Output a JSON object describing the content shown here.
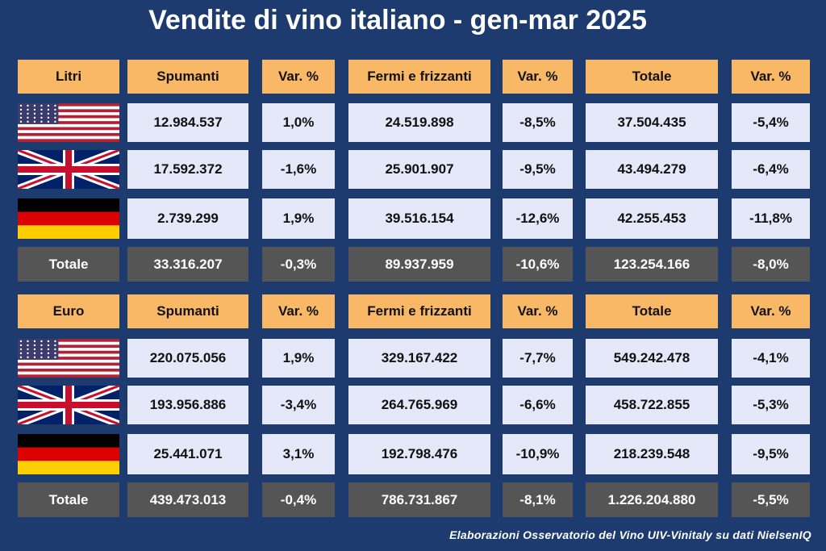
{
  "title": "Vendite di vino italiano - gen-mar 2025",
  "tables": [
    {
      "header": [
        "Litri",
        "Spumanti",
        "Var. %",
        "Fermi e frizzanti",
        "Var. %",
        "Totale",
        "Var. %"
      ],
      "rows": [
        [
          "12.984.537",
          "1,0%",
          "24.519.898",
          "-8,5%",
          "37.504.435",
          "-5,4%"
        ],
        [
          "17.592.372",
          "-1,6%",
          "25.901.907",
          "-9,5%",
          "43.494.279",
          "-6,4%"
        ],
        [
          "2.739.299",
          "1,9%",
          "39.516.154",
          "-12,6%",
          "42.255.453",
          "-11,8%"
        ]
      ],
      "total": [
        "Totale",
        "33.316.207",
        "-0,3%",
        "89.937.959",
        "-10,6%",
        "123.254.166",
        "-8,0%"
      ]
    },
    {
      "header": [
        "Euro",
        "Spumanti",
        "Var. %",
        "Fermi e frizzanti",
        "Var. %",
        "Totale",
        "Var. %"
      ],
      "rows": [
        [
          "220.075.056",
          "1,9%",
          "329.167.422",
          "-7,7%",
          "549.242.478",
          "-4,1%"
        ],
        [
          "193.956.886",
          "-3,4%",
          "264.765.969",
          "-6,6%",
          "458.722.855",
          "-5,3%"
        ],
        [
          "25.441.071",
          "3,1%",
          "192.798.476",
          "-10,9%",
          "218.239.548",
          "-9,5%"
        ]
      ],
      "total": [
        "Totale",
        "439.473.013",
        "-0,4%",
        "786.731.867",
        "-8,1%",
        "1.226.204.880",
        "-5,5%"
      ]
    }
  ],
  "footer": "Elaborazioni Osservatorio del Vino UIV-Vinitaly su dati NielsenIQ"
}
